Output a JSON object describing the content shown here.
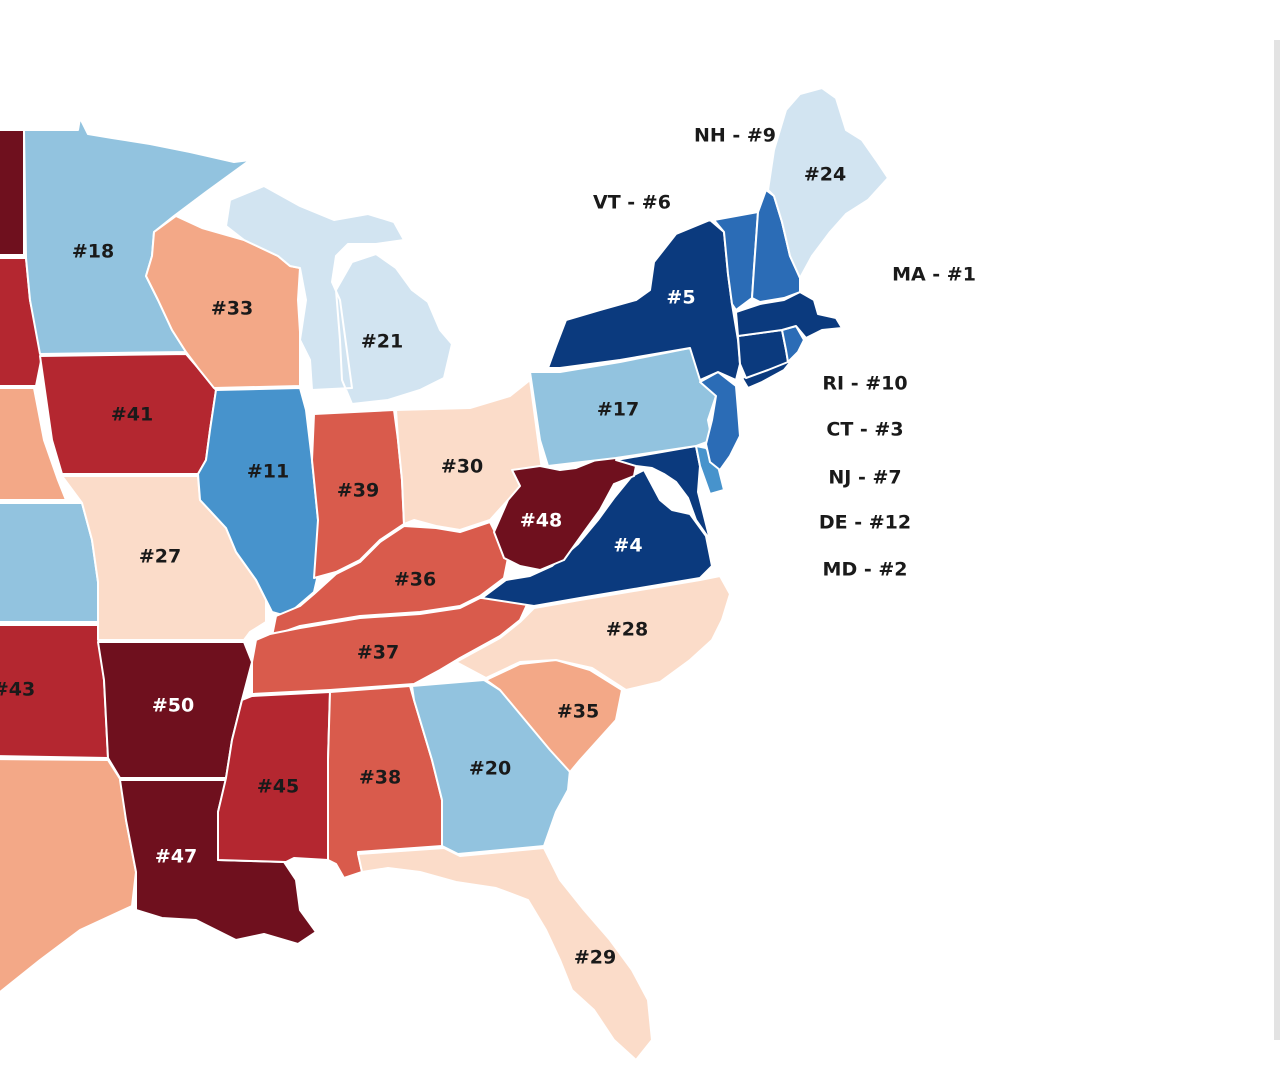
{
  "colors": {
    "rank_1_5": "#0b3a7e",
    "rank_6_10": "#2b6cb6",
    "rank_11_15": "#4793cc",
    "rank_16_20": "#92c3df",
    "rank_21_25": "#d2e4f1",
    "rank_26_30": "#fbdcc9",
    "rank_31_35": "#f3a887",
    "rank_36_40": "#d95b4c",
    "rank_41_45": "#b42730",
    "rank_46_50": "#6f101e",
    "label_dark": "#1a1a1a",
    "label_light": "#ffffff"
  },
  "states": [
    {
      "code": "ND",
      "rank": null,
      "label": ""
    },
    {
      "code": "SD",
      "rank": null,
      "label": ""
    },
    {
      "code": "NE",
      "rank": null,
      "label": ""
    },
    {
      "code": "KS",
      "rank": null,
      "label": ""
    },
    {
      "code": "OK",
      "rank": 43,
      "label": "#43"
    },
    {
      "code": "TX",
      "rank": null,
      "label": ""
    },
    {
      "code": "MN",
      "rank": 18,
      "label": "#18"
    },
    {
      "code": "IA",
      "rank": 41,
      "label": "#41"
    },
    {
      "code": "MO",
      "rank": 27,
      "label": "#27"
    },
    {
      "code": "AR",
      "rank": 50,
      "label": "#50"
    },
    {
      "code": "LA",
      "rank": 47,
      "label": "#47"
    },
    {
      "code": "WI",
      "rank": 33,
      "label": "#33"
    },
    {
      "code": "IL",
      "rank": 11,
      "label": "#11"
    },
    {
      "code": "MI",
      "rank": 21,
      "label": "#21"
    },
    {
      "code": "IN",
      "rank": 39,
      "label": "#39"
    },
    {
      "code": "OH",
      "rank": 30,
      "label": "#30"
    },
    {
      "code": "KY",
      "rank": 36,
      "label": "#36"
    },
    {
      "code": "TN",
      "rank": 37,
      "label": "#37"
    },
    {
      "code": "MS",
      "rank": 45,
      "label": "#45"
    },
    {
      "code": "AL",
      "rank": 38,
      "label": "#38"
    },
    {
      "code": "GA",
      "rank": 20,
      "label": "#20"
    },
    {
      "code": "FL",
      "rank": 29,
      "label": "#29"
    },
    {
      "code": "SC",
      "rank": 35,
      "label": "#35"
    },
    {
      "code": "NC",
      "rank": 28,
      "label": "#28"
    },
    {
      "code": "VA",
      "rank": 4,
      "label": "#4"
    },
    {
      "code": "WV",
      "rank": 48,
      "label": "#48"
    },
    {
      "code": "PA",
      "rank": 17,
      "label": "#17"
    },
    {
      "code": "NY",
      "rank": 5,
      "label": "#5"
    },
    {
      "code": "ME",
      "rank": 24,
      "label": "#24"
    },
    {
      "code": "VT",
      "rank": 6,
      "label": "VT - #6"
    },
    {
      "code": "NH",
      "rank": 9,
      "label": "NH - #9"
    },
    {
      "code": "MA",
      "rank": 1,
      "label": "MA - #1"
    },
    {
      "code": "RI",
      "rank": 10,
      "label": "RI - #10"
    },
    {
      "code": "CT",
      "rank": 3,
      "label": "CT - #3"
    },
    {
      "code": "NJ",
      "rank": 7,
      "label": "NJ - #7"
    },
    {
      "code": "DE",
      "rank": 12,
      "label": "DE - #12"
    },
    {
      "code": "MD",
      "rank": 2,
      "label": "MD - #2"
    }
  ]
}
